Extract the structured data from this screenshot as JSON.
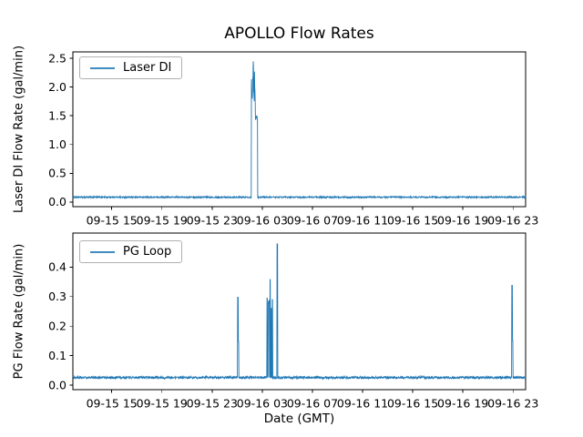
{
  "figure_title": "APOLLO Flow Rates",
  "text_color": "#000000",
  "chart_data": [
    {
      "id": "laser-di",
      "type": "line",
      "title": "APOLLO Flow Rates",
      "xlabel": "",
      "ylabel": "Laser DI Flow Rate (gal/min)",
      "legend": {
        "label": "Laser DI",
        "position": "upper left"
      },
      "line_color": "#1f77b4",
      "grid": false,
      "xlim": [
        11.9,
        48.0
      ],
      "ylim": [
        -0.08,
        2.61
      ],
      "x_ticks": [
        {
          "t": 15,
          "label": "09-15 15"
        },
        {
          "t": 19,
          "label": "09-15 19"
        },
        {
          "t": 23,
          "label": "09-15 23"
        },
        {
          "t": 27,
          "label": "09-16 03"
        },
        {
          "t": 31,
          "label": "09-16 07"
        },
        {
          "t": 35,
          "label": "09-16 11"
        },
        {
          "t": 39,
          "label": "09-16 15"
        },
        {
          "t": 43,
          "label": "09-16 19"
        },
        {
          "t": 47,
          "label": "09-16 23"
        }
      ],
      "y_ticks": [
        0.0,
        0.5,
        1.0,
        1.5,
        2.0,
        2.5
      ],
      "baseline": {
        "value": 0.085,
        "noise": 0.012
      },
      "spikes": [
        {
          "start": 26.12,
          "end": 26.26,
          "min": 1.75,
          "max": 2.4
        },
        {
          "start": 26.26,
          "end": 26.31,
          "min": 2.3,
          "max": 2.45
        },
        {
          "start": 26.31,
          "end": 26.44,
          "min": 1.72,
          "max": 2.38
        },
        {
          "start": 26.44,
          "end": 26.62,
          "min": 1.43,
          "max": 1.5
        }
      ]
    },
    {
      "id": "pg-loop",
      "type": "line",
      "title": "",
      "xlabel": "Date (GMT)",
      "ylabel": "PG Flow Rate (gal/min)",
      "legend": {
        "label": "PG Loop",
        "position": "upper left"
      },
      "line_color": "#1f77b4",
      "grid": false,
      "xlim": [
        11.9,
        48.0
      ],
      "ylim": [
        -0.015,
        0.515
      ],
      "x_ticks": [
        {
          "t": 15,
          "label": "09-15 15"
        },
        {
          "t": 19,
          "label": "09-15 19"
        },
        {
          "t": 23,
          "label": "09-15 23"
        },
        {
          "t": 27,
          "label": "09-16 03"
        },
        {
          "t": 31,
          "label": "09-16 07"
        },
        {
          "t": 35,
          "label": "09-16 11"
        },
        {
          "t": 39,
          "label": "09-16 15"
        },
        {
          "t": 43,
          "label": "09-16 19"
        },
        {
          "t": 47,
          "label": "09-16 23"
        }
      ],
      "y_ticks": [
        0.0,
        0.1,
        0.2,
        0.3,
        0.4
      ],
      "baseline": {
        "value": 0.026,
        "noise": 0.004
      },
      "spikes": [
        {
          "start": 25.03,
          "end": 25.08,
          "min": 0.298,
          "max": 0.298
        },
        {
          "start": 25.08,
          "end": 25.12,
          "min": 0.148,
          "max": 0.148
        },
        {
          "start": 27.36,
          "end": 27.41,
          "min": 0.295,
          "max": 0.295
        },
        {
          "start": 27.46,
          "end": 27.56,
          "min": 0.26,
          "max": 0.295
        },
        {
          "start": 27.6,
          "end": 27.65,
          "min": 0.355,
          "max": 0.36
        },
        {
          "start": 27.7,
          "end": 27.74,
          "min": 0.26,
          "max": 0.26
        },
        {
          "start": 27.78,
          "end": 27.83,
          "min": 0.29,
          "max": 0.29
        },
        {
          "start": 28.17,
          "end": 28.22,
          "min": 0.478,
          "max": 0.478
        },
        {
          "start": 46.9,
          "end": 46.95,
          "min": 0.338,
          "max": 0.338
        },
        {
          "start": 46.96,
          "end": 47.0,
          "min": 0.15,
          "max": 0.15
        }
      ]
    }
  ]
}
